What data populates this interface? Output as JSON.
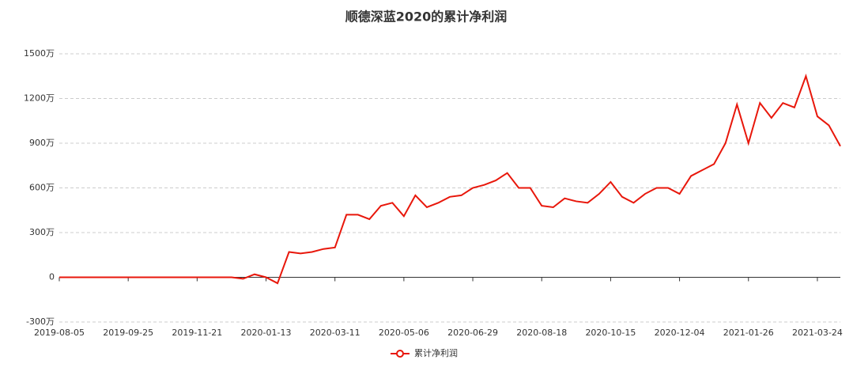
{
  "chart_data": {
    "type": "line",
    "title": "顺德深蓝2020的累计净利润",
    "categories": [
      "2019-08-05",
      null,
      null,
      null,
      null,
      null,
      "2019-09-25",
      null,
      null,
      null,
      null,
      null,
      "2019-11-21",
      null,
      null,
      null,
      null,
      null,
      "2020-01-13",
      null,
      null,
      null,
      null,
      null,
      "2020-03-11",
      null,
      null,
      null,
      null,
      null,
      "2020-05-06",
      null,
      null,
      null,
      null,
      null,
      "2020-06-29",
      null,
      null,
      null,
      null,
      null,
      "2020-08-18",
      null,
      null,
      null,
      null,
      null,
      "2020-10-15",
      null,
      null,
      null,
      null,
      null,
      "2020-12-04",
      null,
      null,
      null,
      null,
      null,
      "2021-01-26",
      null,
      null,
      null,
      null,
      null,
      "2021-03-24",
      null,
      null
    ],
    "series": [
      {
        "name": "累计净利润",
        "color": "#e8170b",
        "values": [
          0,
          0,
          0,
          0,
          0,
          0,
          0,
          0,
          0,
          0,
          0,
          0,
          0,
          0,
          0,
          0,
          -10,
          20,
          0,
          -40,
          170,
          160,
          170,
          190,
          200,
          420,
          420,
          390,
          480,
          500,
          410,
          550,
          470,
          500,
          540,
          550,
          600,
          620,
          650,
          700,
          600,
          600,
          480,
          470,
          530,
          510,
          500,
          560,
          640,
          540,
          500,
          560,
          600,
          600,
          560,
          680,
          720,
          760,
          900,
          1160,
          900,
          1170,
          1070,
          1170,
          1140,
          1350,
          1080,
          1020,
          880
        ]
      }
    ],
    "ylim": [
      -300,
      1500
    ],
    "yticks": [
      {
        "value": -300,
        "label": "-300万"
      },
      0,
      {
        "value": 300,
        "label": "300万"
      },
      {
        "value": 600,
        "label": "600万"
      },
      {
        "value": 900,
        "label": "900万"
      },
      {
        "value": 1200,
        "label": "1200万"
      },
      {
        "value": 1500,
        "label": "1500万"
      }
    ],
    "grid": true
  }
}
